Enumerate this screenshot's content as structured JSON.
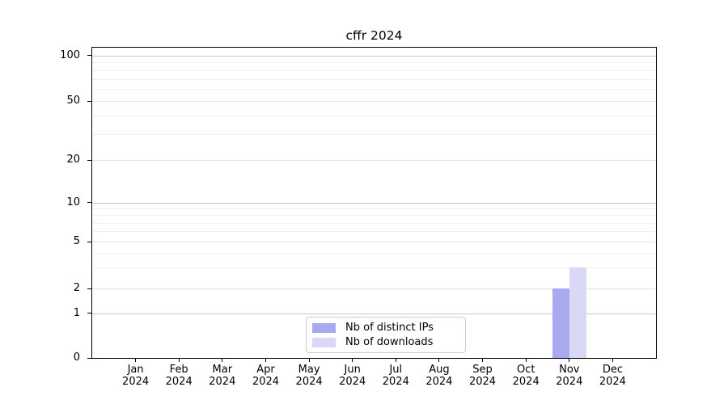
{
  "chart_data": {
    "type": "bar",
    "title": "cffr 2024",
    "categories": [
      "Jan",
      "Feb",
      "Mar",
      "Apr",
      "May",
      "Jun",
      "Jul",
      "Aug",
      "Sep",
      "Oct",
      "Nov",
      "Dec"
    ],
    "year_label": "2024",
    "series": [
      {
        "name": "Nb of distinct IPs",
        "color": "#a9a9f0",
        "values": [
          0,
          0,
          0,
          0,
          0,
          0,
          0,
          0,
          0,
          0,
          2,
          0
        ]
      },
      {
        "name": "Nb of downloads",
        "color": "#d9d9f6",
        "values": [
          0,
          0,
          0,
          0,
          0,
          0,
          0,
          0,
          0,
          0,
          3,
          0
        ]
      }
    ],
    "xlabel": "",
    "ylabel": "",
    "yscale": "symlog",
    "y_ticks": [
      0,
      1,
      2,
      5,
      10,
      20,
      50,
      100
    ],
    "y_minor_gridlines": [
      3,
      4,
      6,
      7,
      8,
      9,
      30,
      40,
      60,
      70,
      80,
      90
    ],
    "ylim": [
      0,
      110
    ],
    "grid": "horizontal",
    "legend_position": "bottom-center"
  },
  "colors": {
    "grid_major_decade": "#c9c9c9",
    "grid_major_other": "#e3e3e3",
    "grid_minor": "#f1f1f1",
    "axis": "#000000",
    "legend_border": "#cccccc",
    "background": "#ffffff"
  }
}
